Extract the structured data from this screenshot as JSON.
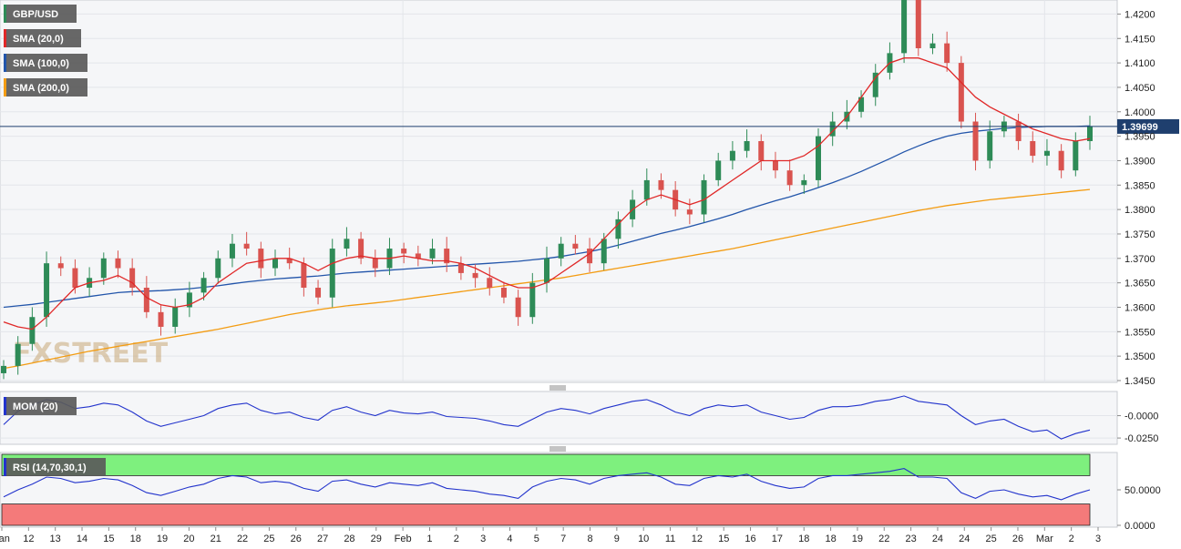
{
  "chart_data": [
    {
      "type": "candlestick",
      "symbol": "GBP/USD",
      "indicators": [
        {
          "name": "SMA (20,0)",
          "color": "#e02828"
        },
        {
          "name": "SMA (100,0)",
          "color": "#2255aa"
        },
        {
          "name": "SMA (200,0)",
          "color": "#f39c12"
        }
      ],
      "y_ticks": [
        "1.4200",
        "1.4150",
        "1.4100",
        "1.4050",
        "1.4000",
        "1.3950",
        "1.3900",
        "1.3850",
        "1.3800",
        "1.3750",
        "1.3700",
        "1.3650",
        "1.3600",
        "1.3550",
        "1.3500",
        "1.3450"
      ],
      "ylim": [
        1.345,
        1.4225
      ],
      "last_price": "1.39699",
      "x_labels": [
        "Jan",
        "12",
        "13",
        "14",
        "15",
        "18",
        "19",
        "20",
        "21",
        "22",
        "25",
        "26",
        "27",
        "28",
        "29",
        "Feb",
        "1",
        "2",
        "3",
        "4",
        "5",
        "7",
        "8",
        "9",
        "10",
        "11",
        "12",
        "15",
        "16",
        "17",
        "18",
        "18",
        "19",
        "22",
        "23",
        "24",
        "24",
        "25",
        "26",
        "Mar",
        "2",
        "3"
      ],
      "close_path": [
        1.348,
        1.3525,
        1.358,
        1.369,
        1.368,
        1.364,
        1.366,
        1.37,
        1.368,
        1.364,
        1.359,
        1.356,
        1.36,
        1.363,
        1.366,
        1.37,
        1.373,
        1.372,
        1.368,
        1.37,
        1.369,
        1.364,
        1.362,
        1.372,
        1.374,
        1.37,
        1.368,
        1.372,
        1.371,
        1.37,
        1.372,
        1.369,
        1.367,
        1.366,
        1.364,
        1.362,
        1.358,
        1.365,
        1.37,
        1.373,
        1.372,
        1.369,
        1.374,
        1.378,
        1.382,
        1.386,
        1.384,
        1.38,
        1.379,
        1.386,
        1.39,
        1.392,
        1.394,
        1.39,
        1.388,
        1.385,
        1.386,
        1.395,
        1.398,
        1.4,
        1.403,
        1.408,
        1.412,
        1.423,
        1.413,
        1.414,
        1.41,
        1.398,
        1.39,
        1.396,
        1.398,
        1.394,
        1.391,
        1.392,
        1.388,
        1.394,
        1.397
      ],
      "sma20": [
        1.357,
        1.356,
        1.3555,
        1.358,
        1.361,
        1.364,
        1.365,
        1.3655,
        1.3665,
        1.365,
        1.362,
        1.3605,
        1.36,
        1.3605,
        1.362,
        1.365,
        1.367,
        1.369,
        1.3695,
        1.37,
        1.37,
        1.369,
        1.3675,
        1.369,
        1.37,
        1.3705,
        1.37,
        1.37,
        1.3705,
        1.37,
        1.3695,
        1.3695,
        1.369,
        1.368,
        1.3665,
        1.365,
        1.364,
        1.364,
        1.365,
        1.367,
        1.369,
        1.371,
        1.374,
        1.377,
        1.38,
        1.382,
        1.383,
        1.382,
        1.381,
        1.382,
        1.384,
        1.386,
        1.388,
        1.39,
        1.39,
        1.39,
        1.391,
        1.393,
        1.396,
        1.399,
        1.403,
        1.407,
        1.41,
        1.411,
        1.411,
        1.41,
        1.409,
        1.406,
        1.403,
        1.401,
        1.3995,
        1.398,
        1.3965,
        1.3955,
        1.3945,
        1.394,
        1.3945
      ],
      "sma100": [
        1.36,
        1.3603,
        1.3606,
        1.361,
        1.3614,
        1.3618,
        1.3622,
        1.3626,
        1.363,
        1.3632,
        1.3633,
        1.3634,
        1.3636,
        1.3638,
        1.3641,
        1.3644,
        1.3648,
        1.3652,
        1.3655,
        1.3658,
        1.366,
        1.3662,
        1.3664,
        1.3667,
        1.367,
        1.3672,
        1.3674,
        1.3676,
        1.3678,
        1.368,
        1.3682,
        1.3684,
        1.3686,
        1.3688,
        1.369,
        1.3692,
        1.3694,
        1.3697,
        1.37,
        1.3704,
        1.3709,
        1.3714,
        1.372,
        1.3727,
        1.3735,
        1.3743,
        1.3751,
        1.3758,
        1.3765,
        1.3773,
        1.3781,
        1.379,
        1.38,
        1.3809,
        1.3818,
        1.3826,
        1.3835,
        1.3845,
        1.3855,
        1.3866,
        1.3878,
        1.3891,
        1.3904,
        1.3918,
        1.393,
        1.3941,
        1.395,
        1.3956,
        1.396,
        1.3963,
        1.3966,
        1.3968,
        1.3969,
        1.397,
        1.397,
        1.397,
        1.3971
      ],
      "sma200": [
        1.3475,
        1.348,
        1.3486,
        1.3492,
        1.3498,
        1.3504,
        1.351,
        1.3515,
        1.352,
        1.3525,
        1.353,
        1.3535,
        1.354,
        1.3545,
        1.355,
        1.3555,
        1.3561,
        1.3567,
        1.3573,
        1.3579,
        1.3585,
        1.359,
        1.3595,
        1.3599,
        1.3603,
        1.3606,
        1.3609,
        1.3612,
        1.3616,
        1.362,
        1.3624,
        1.3628,
        1.3632,
        1.3636,
        1.364,
        1.3644,
        1.3648,
        1.3652,
        1.3656,
        1.366,
        1.3665,
        1.367,
        1.3675,
        1.368,
        1.3685,
        1.369,
        1.3695,
        1.37,
        1.3705,
        1.371,
        1.3715,
        1.372,
        1.3726,
        1.3732,
        1.3738,
        1.3744,
        1.375,
        1.3756,
        1.3762,
        1.3768,
        1.3774,
        1.378,
        1.3786,
        1.3792,
        1.3798,
        1.3803,
        1.3808,
        1.3812,
        1.3816,
        1.382,
        1.3823,
        1.3826,
        1.3829,
        1.3832,
        1.3835,
        1.3838,
        1.3841
      ]
    },
    {
      "type": "line",
      "name": "MOM (20)",
      "color": "#2233cc",
      "y_ticks": [
        "-0.0000",
        "-0.0250"
      ],
      "ylim": [
        -0.03,
        0.025
      ],
      "values": [
        -0.01,
        0.005,
        0.012,
        0.018,
        0.015,
        0.008,
        0.01,
        0.014,
        0.012,
        0.004,
        -0.006,
        -0.012,
        -0.008,
        -0.004,
        0.0,
        0.008,
        0.012,
        0.014,
        0.006,
        0.002,
        0.004,
        -0.002,
        -0.005,
        0.006,
        0.01,
        0.004,
        0.0,
        0.006,
        0.003,
        0.002,
        0.004,
        -0.001,
        -0.002,
        -0.003,
        -0.006,
        -0.01,
        -0.012,
        -0.004,
        0.004,
        0.008,
        0.006,
        0.002,
        0.008,
        0.012,
        0.016,
        0.018,
        0.012,
        0.004,
        0.0,
        0.008,
        0.012,
        0.01,
        0.012,
        0.004,
        0.0,
        -0.004,
        -0.002,
        0.006,
        0.01,
        0.01,
        0.012,
        0.016,
        0.018,
        0.022,
        0.016,
        0.014,
        0.012,
        0.0,
        -0.01,
        -0.006,
        -0.004,
        -0.012,
        -0.018,
        -0.016,
        -0.026,
        -0.02,
        -0.016
      ]
    },
    {
      "type": "line",
      "name": "RSI (14,70,30,1)",
      "color": "#2233cc",
      "y_ticks": [
        "50.0000",
        "0.0000"
      ],
      "ylim": [
        0,
        100
      ],
      "overbought": 70,
      "oversold": 30,
      "values": [
        40,
        50,
        58,
        68,
        66,
        60,
        62,
        66,
        64,
        56,
        46,
        42,
        48,
        54,
        58,
        66,
        70,
        68,
        60,
        62,
        60,
        52,
        48,
        62,
        64,
        58,
        54,
        60,
        58,
        56,
        60,
        52,
        50,
        48,
        44,
        42,
        38,
        54,
        62,
        66,
        64,
        58,
        66,
        70,
        72,
        74,
        68,
        58,
        56,
        66,
        70,
        68,
        72,
        62,
        56,
        52,
        54,
        66,
        70,
        70,
        72,
        74,
        76,
        80,
        68,
        68,
        66,
        46,
        38,
        48,
        50,
        44,
        40,
        42,
        36,
        44,
        50
      ]
    }
  ],
  "watermark": "FXSTREET"
}
